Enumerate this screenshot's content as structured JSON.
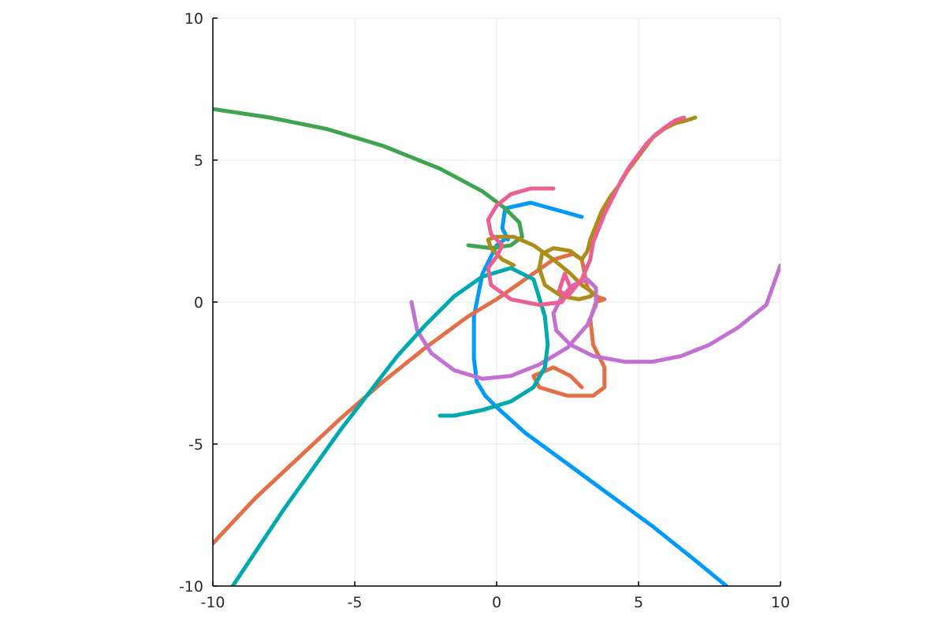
{
  "chart_data": {
    "type": "line",
    "title": "",
    "xlabel": "",
    "ylabel": "",
    "xlim": [
      -10,
      10
    ],
    "ylim": [
      -10,
      10
    ],
    "grid": true,
    "legend": "none",
    "xticks": [
      -10,
      -5,
      0,
      5,
      10
    ],
    "yticks": [
      -10,
      -5,
      0,
      5,
      10
    ],
    "xtick_labels": [
      "-10",
      "-5",
      "0",
      "5",
      "10"
    ],
    "ytick_labels": [
      "-10",
      "-5",
      "0",
      "5",
      "10"
    ],
    "series": [
      {
        "color": "#009AFA",
        "x": [
          3.0,
          1.2,
          0.3,
          0.2,
          0.4,
          0.4,
          0.0,
          -0.5,
          -0.8,
          -0.8,
          -0.7,
          -0.4,
          0.0,
          1.0,
          2.5,
          4.0,
          5.5,
          7.0,
          8.1
        ],
        "y": [
          3.0,
          3.5,
          3.3,
          2.6,
          2.2,
          2.3,
          2.0,
          1.0,
          -0.5,
          -2.0,
          -2.8,
          -3.3,
          -3.7,
          -4.6,
          -5.7,
          -6.8,
          -7.9,
          -9.1,
          -10.0
        ]
      },
      {
        "color": "#E36F47",
        "x": [
          -10.0,
          -8.5,
          -7.0,
          -5.5,
          -4.0,
          -2.5,
          -1.0,
          0.0,
          1.0,
          2.0,
          2.7,
          3.0,
          3.1,
          3.2,
          3.5,
          3.8,
          3.5,
          3.3,
          3.4,
          3.8,
          3.8,
          3.4,
          2.5,
          1.5,
          1.3,
          2.0,
          2.6,
          3.0
        ],
        "y": [
          -8.5,
          -6.9,
          -5.5,
          -4.1,
          -2.8,
          -1.6,
          -0.5,
          0.1,
          0.8,
          1.5,
          1.7,
          1.5,
          1.0,
          0.5,
          0.2,
          0.1,
          0.0,
          -0.6,
          -1.5,
          -2.3,
          -3.0,
          -3.3,
          -3.3,
          -3.0,
          -2.6,
          -2.3,
          -2.6,
          -3.0
        ]
      },
      {
        "color": "#3EA44E",
        "x": [
          -10.0,
          -8.0,
          -6.0,
          -4.0,
          -2.0,
          -0.5,
          0.3,
          0.8,
          0.9,
          0.5,
          -0.2,
          -1.0
        ],
        "y": [
          6.8,
          6.5,
          6.1,
          5.5,
          4.7,
          3.9,
          3.3,
          2.8,
          2.3,
          2.0,
          1.9,
          2.0
        ]
      },
      {
        "color": "#C271D2",
        "x": [
          -3.0,
          -2.8,
          -2.3,
          -1.5,
          -0.5,
          0.5,
          1.5,
          2.5,
          3.2,
          3.5,
          3.5,
          3.2,
          2.7,
          2.3,
          2.0,
          2.1,
          2.6,
          3.4,
          4.5,
          5.5,
          6.5,
          7.5,
          8.5,
          9.5,
          10.0
        ],
        "y": [
          0.0,
          -1.0,
          -1.8,
          -2.4,
          -2.7,
          -2.6,
          -2.2,
          -1.6,
          -0.8,
          -0.1,
          0.5,
          0.8,
          0.6,
          0.2,
          -0.4,
          -1.0,
          -1.5,
          -1.9,
          -2.1,
          -2.1,
          -1.9,
          -1.5,
          -0.9,
          -0.1,
          1.3
        ]
      },
      {
        "color": "#AC8D18",
        "x": [
          0.6,
          0.2,
          -0.2,
          -0.3,
          0.0,
          0.6,
          1.3,
          2.0,
          2.6,
          3.0,
          3.3,
          3.4,
          3.3,
          2.9,
          2.3,
          1.7,
          1.5,
          1.6,
          2.0,
          2.6,
          3.0,
          3.2,
          3.3,
          3.5,
          3.7,
          4.0,
          4.3,
          4.6,
          4.9,
          5.2,
          5.5,
          5.9,
          6.3,
          6.7,
          7.0
        ],
        "y": [
          1.3,
          1.5,
          1.9,
          2.2,
          2.3,
          2.3,
          2.0,
          1.5,
          1.0,
          0.6,
          0.4,
          0.3,
          0.2,
          0.1,
          0.2,
          0.6,
          1.2,
          1.7,
          1.9,
          1.8,
          1.5,
          1.8,
          2.2,
          2.7,
          3.2,
          3.7,
          4.1,
          4.6,
          5.0,
          5.4,
          5.8,
          6.1,
          6.3,
          6.4,
          6.5
        ]
      },
      {
        "color": "#00A9AD",
        "x": [
          -9.3,
          -8.5,
          -7.5,
          -6.5,
          -5.5,
          -4.5,
          -3.5,
          -2.5,
          -1.5,
          -0.5,
          0.5,
          1.3,
          1.7,
          1.8,
          1.7,
          1.3,
          0.5,
          -0.5,
          -1.5,
          -2.0
        ],
        "y": [
          -10.0,
          -8.8,
          -7.3,
          -5.9,
          -4.5,
          -3.2,
          -1.9,
          -0.8,
          0.2,
          0.9,
          1.2,
          0.8,
          -0.5,
          -1.5,
          -2.3,
          -3.0,
          -3.5,
          -3.8,
          -4.0,
          -4.0
        ]
      },
      {
        "color": "#ED5E93",
        "x": [
          2.0,
          1.2,
          0.5,
          0.0,
          -0.3,
          -0.2,
          0.2,
          0.0,
          -0.3,
          -0.2,
          0.5,
          1.5,
          2.3,
          2.6,
          2.4,
          2.2,
          2.5,
          3.0,
          3.3,
          3.4,
          3.6,
          3.8,
          4.1,
          4.4,
          4.7,
          5.0,
          5.3,
          5.6,
          6.0,
          6.3,
          6.6
        ],
        "y": [
          4.0,
          4.0,
          3.8,
          3.4,
          2.9,
          2.4,
          2.0,
          1.6,
          1.2,
          0.6,
          0.1,
          -0.1,
          0.0,
          0.5,
          1.0,
          0.4,
          0.2,
          0.8,
          1.5,
          2.1,
          2.6,
          3.1,
          3.7,
          4.3,
          4.8,
          5.2,
          5.6,
          5.9,
          6.2,
          6.4,
          6.5
        ]
      }
    ]
  }
}
